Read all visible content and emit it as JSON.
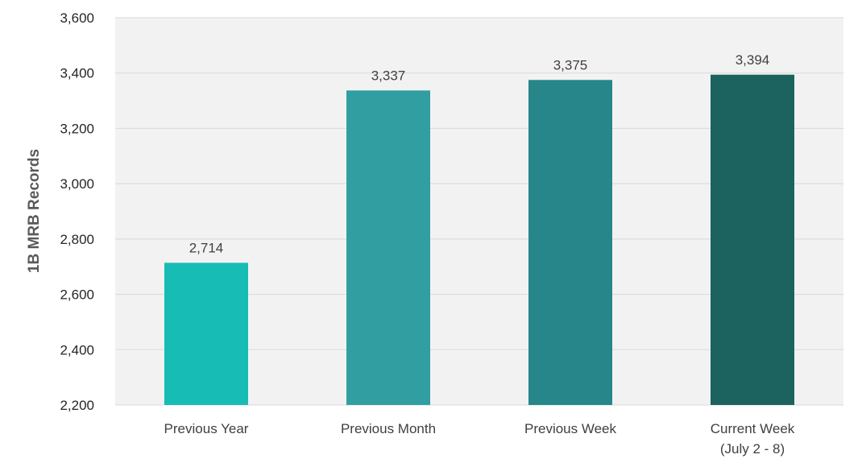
{
  "chart_data": {
    "type": "bar",
    "title": "",
    "xlabel": "",
    "ylabel": "1B MRB Records",
    "ylim": [
      2200,
      3600
    ],
    "ytick_step": 200,
    "grid": true,
    "legend": "none",
    "categories": [
      [
        "Previous Year"
      ],
      [
        "Previous Month"
      ],
      [
        "Previous Week"
      ],
      [
        "Current Week",
        "(July 2 - 8)"
      ]
    ],
    "values": [
      2714,
      3337,
      3375,
      3394
    ],
    "value_labels": [
      "2,714",
      "3,337",
      "3,375",
      "3,394"
    ],
    "yticks": [
      "2,200",
      "2,400",
      "2,600",
      "2,800",
      "3,000",
      "3,200",
      "3,400",
      "3,600"
    ],
    "colors": [
      "#17bcb5",
      "#319fa2",
      "#278689",
      "#1c625f"
    ],
    "plot_background": "#f2f2f2",
    "gridline_color": "#d9d9d9"
  }
}
